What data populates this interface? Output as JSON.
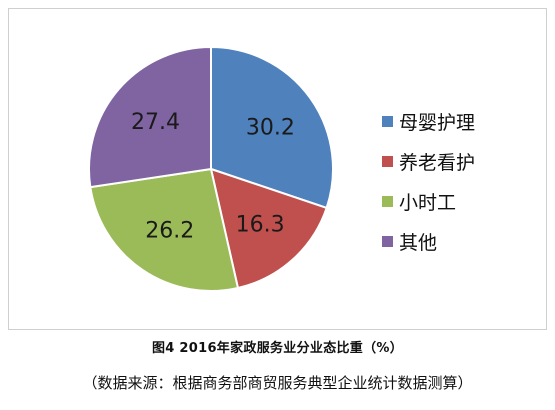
{
  "chart_data": {
    "type": "pie",
    "categories": [
      "母婴护理",
      "养老看护",
      "小时工",
      "其他"
    ],
    "values": [
      30.2,
      16.3,
      26.2,
      27.4
    ],
    "value_labels": [
      "30.2",
      "16.3",
      "26.2",
      "27.4"
    ],
    "colors": [
      "#4f81bd",
      "#c0504d",
      "#9bbb59",
      "#8064a2"
    ],
    "start_angle_deg": 0,
    "direction": "clockwise",
    "legend_position": "right",
    "legend": [
      {
        "label": "母婴护理",
        "color": "#4f81bd"
      },
      {
        "label": "养老看护",
        "color": "#c0504d"
      },
      {
        "label": "小时工",
        "color": "#9bbb59"
      },
      {
        "label": "其他",
        "color": "#8064a2"
      }
    ]
  },
  "caption": "图4   2016年家政服务业分业态比重（%）",
  "source": "（数据来源：根据商务部商贸服务典型企业统计数据测算）"
}
